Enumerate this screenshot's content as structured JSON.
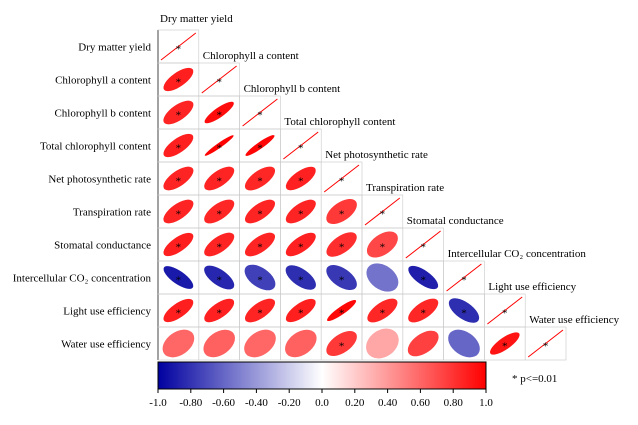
{
  "chart_data": {
    "type": "heatmap",
    "subtype": "correlation-ellipse-lower-triangle",
    "variables": [
      "Dry matter yield",
      "Chlorophyll a content",
      "Chlorophyll b content",
      "Total chlorophyll content",
      "Net photosynthetic rate",
      "Transpiration rate",
      "Stomatal conductance",
      "Intercellular CO₂ concentration",
      "Light use efficiency",
      "Water use efficiency"
    ],
    "matrix": [
      [
        1.0
      ],
      [
        0.88,
        1.0
      ],
      [
        0.86,
        0.95,
        1.0
      ],
      [
        0.88,
        0.99,
        0.98,
        1.0
      ],
      [
        0.86,
        0.86,
        0.85,
        0.87,
        1.0
      ],
      [
        0.86,
        0.85,
        0.86,
        0.86,
        0.78,
        1.0
      ],
      [
        0.88,
        0.86,
        0.86,
        0.87,
        0.82,
        0.72,
        1.0
      ],
      [
        -0.9,
        -0.85,
        -0.75,
        -0.82,
        -0.78,
        -0.55,
        -0.88,
        1.0
      ],
      [
        0.88,
        0.87,
        0.86,
        0.88,
        0.97,
        0.85,
        0.85,
        -0.82,
        1.0
      ],
      [
        0.6,
        0.62,
        0.6,
        0.62,
        0.78,
        0.35,
        0.75,
        -0.6,
        0.92,
        1.0
      ]
    ],
    "significant": [
      [
        true
      ],
      [
        true,
        true
      ],
      [
        true,
        true,
        true
      ],
      [
        true,
        true,
        true,
        true
      ],
      [
        true,
        true,
        true,
        true,
        true
      ],
      [
        true,
        true,
        true,
        true,
        true,
        true
      ],
      [
        true,
        true,
        true,
        true,
        true,
        true,
        true
      ],
      [
        true,
        true,
        true,
        true,
        true,
        false,
        true,
        true
      ],
      [
        true,
        true,
        true,
        true,
        true,
        true,
        true,
        true,
        true
      ],
      [
        false,
        false,
        false,
        false,
        true,
        false,
        false,
        false,
        true,
        true
      ]
    ],
    "colorbar": {
      "min": -1.0,
      "max": 1.0,
      "ticks": [
        "-1.0",
        "-0.80",
        "-0.60",
        "-0.40",
        "-0.20",
        "0.0",
        "0.20",
        "0.40",
        "0.60",
        "0.80",
        "1.0"
      ],
      "negative_color": "#0000a0",
      "neutral_color": "#ffffff",
      "positive_color": "#ff0000"
    },
    "significance_marker": "*",
    "legend_note": "* p<=0.01"
  }
}
